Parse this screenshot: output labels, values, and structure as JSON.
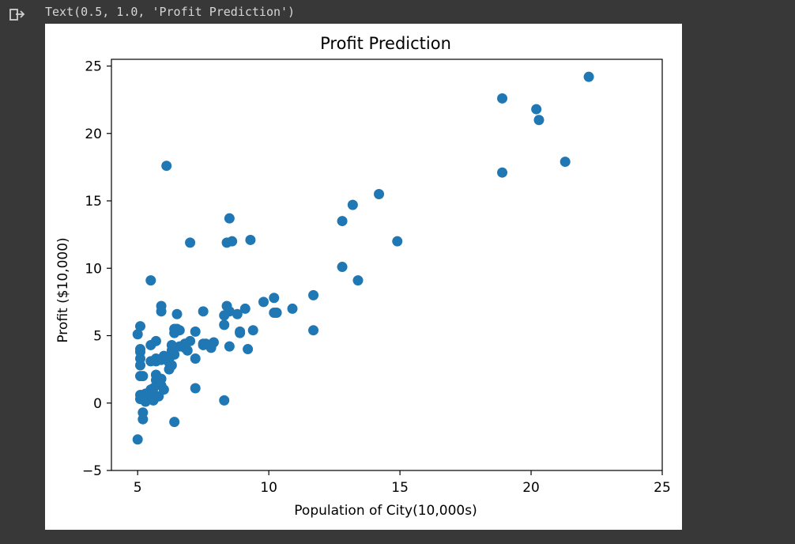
{
  "cell_output": {
    "text": "Text(0.5, 1.0, 'Profit Prediction')",
    "icon": "output-arrow-icon"
  },
  "colors": {
    "page_background": "#383838",
    "figure_background": "#ffffff",
    "marker": "#1f77b4"
  },
  "chart_data": {
    "type": "scatter",
    "title": "Profit Prediction",
    "xlabel": "Population of City(10,000s)",
    "ylabel": "Profit ($10,000)",
    "xlim": [
      4,
      25
    ],
    "ylim": [
      -5,
      25.5
    ],
    "xticks": [
      5,
      10,
      15,
      20,
      25
    ],
    "yticks": [
      -5,
      0,
      5,
      10,
      15,
      20,
      25
    ],
    "grid": false,
    "points": [
      [
        6.1,
        17.6
      ],
      [
        5.5,
        9.1
      ],
      [
        8.5,
        13.7
      ],
      [
        7.0,
        11.9
      ],
      [
        5.9,
        6.8
      ],
      [
        8.4,
        11.9
      ],
      [
        7.5,
        4.3
      ],
      [
        8.6,
        12.0
      ],
      [
        6.5,
        6.6
      ],
      [
        5.1,
        3.8
      ],
      [
        5.7,
        3.3
      ],
      [
        14.2,
        15.5
      ],
      [
        5.7,
        3.1
      ],
      [
        8.4,
        7.2
      ],
      [
        5.6,
        0.7
      ],
      [
        5.1,
        3.3
      ],
      [
        11.7,
        8.0
      ],
      [
        5.5,
        4.3
      ],
      [
        8.5,
        6.8
      ],
      [
        7.0,
        4.6
      ],
      [
        5.9,
        1.8
      ],
      [
        6.8,
        4.4
      ],
      [
        9.1,
        7.0
      ],
      [
        8.3,
        6.5
      ],
      [
        6.3,
        3.9
      ],
      [
        5.1,
        5.7
      ],
      [
        6.4,
        3.6
      ],
      [
        5.1,
        2.8
      ],
      [
        5.5,
        3.1
      ],
      [
        6.2,
        3.3
      ],
      [
        8.9,
        5.2
      ],
      [
        9.2,
        4.0
      ],
      [
        5.9,
        3.2
      ],
      [
        21.3,
        17.9
      ],
      [
        6.6,
        5.4
      ],
      [
        5.1,
        4.0
      ],
      [
        12.8,
        13.5
      ],
      [
        10.3,
        6.7
      ],
      [
        11.7,
        5.4
      ],
      [
        10.2,
        6.7
      ],
      [
        6.4,
        5.2
      ],
      [
        5.3,
        0.7
      ],
      [
        6.4,
        5.5
      ],
      [
        6.0,
        3.5
      ],
      [
        6.6,
        4.2
      ],
      [
        7.2,
        3.3
      ],
      [
        5.7,
        2.1
      ],
      [
        6.9,
        3.9
      ],
      [
        6.2,
        2.5
      ],
      [
        6.2,
        3.0
      ],
      [
        6.8,
        4.1
      ],
      [
        18.9,
        22.6
      ],
      [
        7.5,
        4.4
      ],
      [
        5.0,
        -2.7
      ],
      [
        5.3,
        0.1
      ],
      [
        8.8,
        6.6
      ],
      [
        7.2,
        5.3
      ],
      [
        6.3,
        4.3
      ],
      [
        5.9,
        7.2
      ],
      [
        6.3,
        2.8
      ],
      [
        5.9,
        1.3
      ],
      [
        5.1,
        2.0
      ],
      [
        10.2,
        7.8
      ],
      [
        5.5,
        1.0
      ],
      [
        20.3,
        21.0
      ],
      [
        10.9,
        7.0
      ],
      [
        7.2,
        1.1
      ],
      [
        5.7,
        1.7
      ],
      [
        9.3,
        12.1
      ],
      [
        12.8,
        10.1
      ],
      [
        5.5,
        0.6
      ],
      [
        20.2,
        21.8
      ],
      [
        9.8,
        7.5
      ],
      [
        7.5,
        6.8
      ],
      [
        8.3,
        5.8
      ],
      [
        7.6,
        4.4
      ],
      [
        9.4,
        5.4
      ],
      [
        8.9,
        5.3
      ],
      [
        5.2,
        2.0
      ],
      [
        7.9,
        4.5
      ],
      [
        5.4,
        0.3
      ],
      [
        13.2,
        14.7
      ],
      [
        5.1,
        0.6
      ],
      [
        5.0,
        5.1
      ],
      [
        6.5,
        5.5
      ],
      [
        5.6,
        0.2
      ],
      [
        5.2,
        -0.7
      ],
      [
        5.1,
        0.3
      ],
      [
        13.4,
        9.1
      ],
      [
        5.6,
        1.1
      ],
      [
        22.2,
        24.2
      ],
      [
        18.9,
        17.1
      ],
      [
        14.9,
        12.0
      ],
      [
        8.3,
        0.2
      ],
      [
        6.4,
        -1.4
      ],
      [
        5.2,
        -1.2
      ],
      [
        5.8,
        0.5
      ],
      [
        6.0,
        1.0
      ],
      [
        7.8,
        4.1
      ],
      [
        5.7,
        4.6
      ],
      [
        8.5,
        4.2
      ]
    ]
  }
}
